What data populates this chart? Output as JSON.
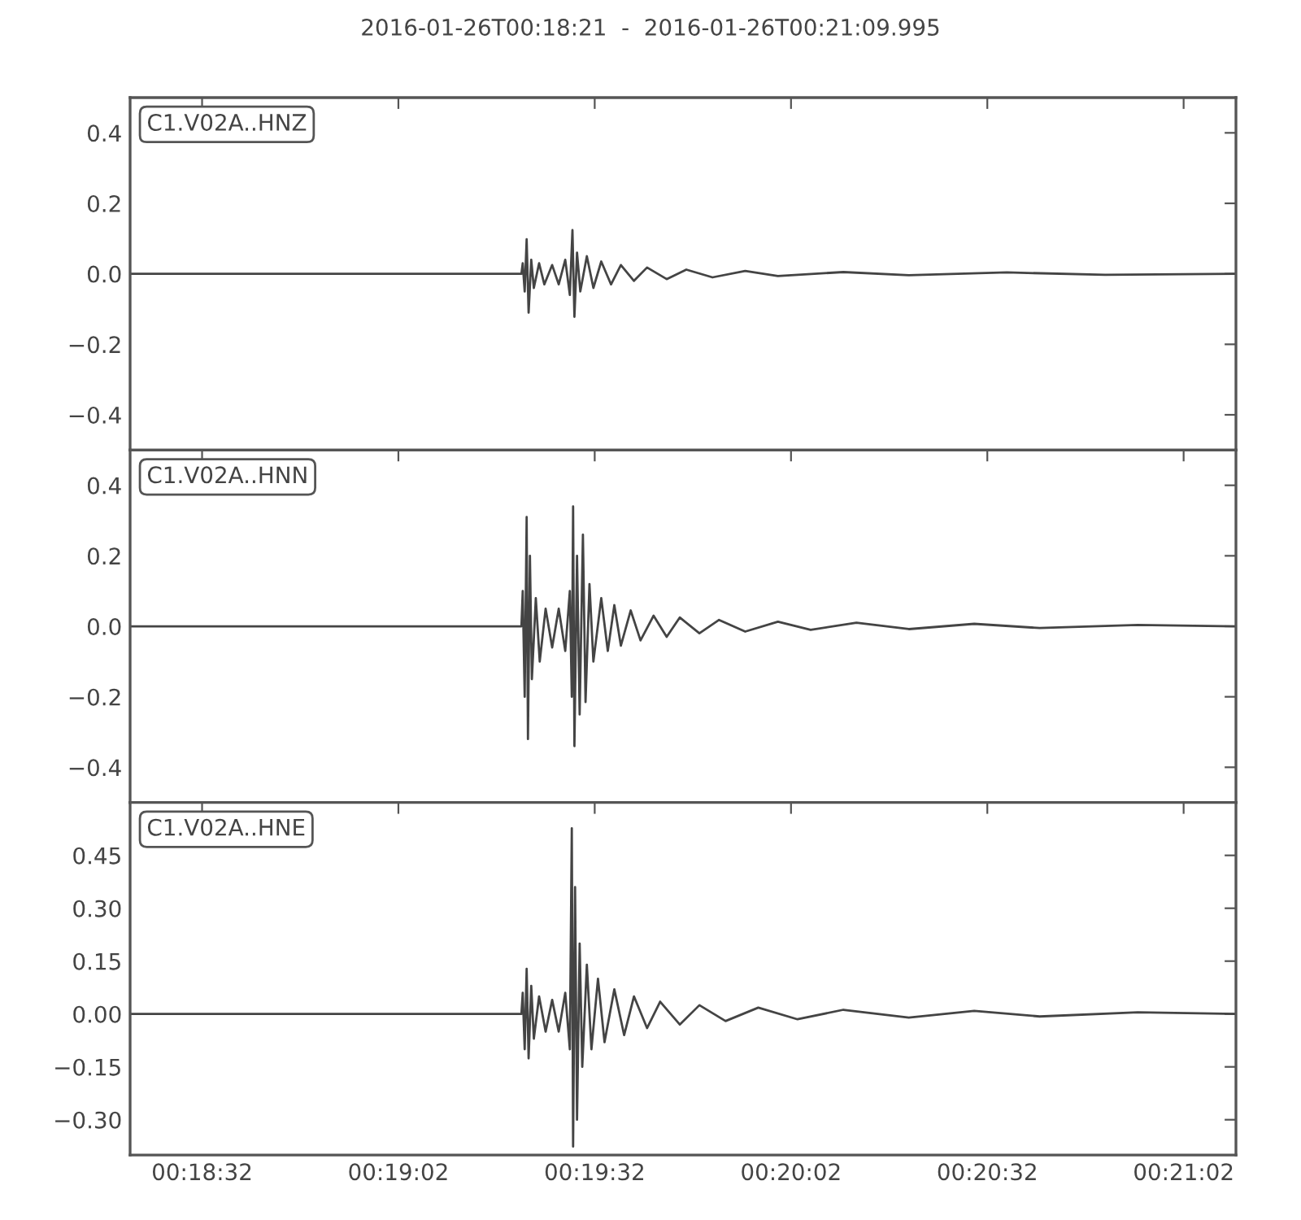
{
  "chart_data": [
    {
      "type": "line",
      "title": "2016-01-26T00:18:21  -  2016-01-26T00:21:09.995",
      "annotations": [
        "C1.V02A..HNZ"
      ],
      "tick_labels": "y",
      "grid": false,
      "legend": false,
      "xlim": [
        1101,
        1269.995
      ],
      "xticks": [
        {
          "value": 1112,
          "label": null
        },
        {
          "value": 1142,
          "label": null
        },
        {
          "value": 1172,
          "label": null
        },
        {
          "value": 1202,
          "label": null
        },
        {
          "value": 1232,
          "label": null
        },
        {
          "value": 1262,
          "label": null
        }
      ],
      "ylim": [
        -0.5,
        0.5
      ],
      "yticks": [
        {
          "value": -0.4,
          "label": "−0.4"
        },
        {
          "value": -0.2,
          "label": "−0.2"
        },
        {
          "value": 0,
          "label": "0.0"
        },
        {
          "value": 0.2,
          "label": "0.2"
        },
        {
          "value": 0.4,
          "label": "0.4"
        }
      ],
      "series": [
        {
          "color": "#444444",
          "x": [
            1101,
            1160.8,
            1161.0,
            1161.3,
            1161.6,
            1161.9,
            1162.3,
            1162.7,
            1163.5,
            1164.3,
            1165.5,
            1166.5,
            1167.5,
            1168.2,
            1168.6,
            1168.9,
            1169.3,
            1169.8,
            1170.8,
            1171.8,
            1173,
            1174.5,
            1176,
            1178,
            1180,
            1183,
            1186,
            1190,
            1195,
            1200,
            1210,
            1220,
            1235,
            1250,
            1269.995
          ],
          "values": [
            0,
            0,
            0.03,
            -0.05,
            0.098,
            -0.11,
            0.04,
            -0.04,
            0.03,
            -0.03,
            0.025,
            -0.03,
            0.04,
            -0.06,
            0.124,
            -0.122,
            0.06,
            -0.05,
            0.05,
            -0.04,
            0.035,
            -0.03,
            0.025,
            -0.02,
            0.018,
            -0.015,
            0.012,
            -0.01,
            0.008,
            -0.006,
            0.005,
            -0.004,
            0.004,
            -0.003,
            0
          ]
        }
      ]
    },
    {
      "type": "line",
      "annotations": [
        "C1.V02A..HNN"
      ],
      "tick_labels": "y",
      "grid": false,
      "legend": false,
      "xlim": [
        1101,
        1269.995
      ],
      "xticks": [
        {
          "value": 1112,
          "label": null
        },
        {
          "value": 1142,
          "label": null
        },
        {
          "value": 1172,
          "label": null
        },
        {
          "value": 1202,
          "label": null
        },
        {
          "value": 1232,
          "label": null
        },
        {
          "value": 1262,
          "label": null
        }
      ],
      "ylim": [
        -0.5,
        0.5
      ],
      "yticks": [
        {
          "value": -0.4,
          "label": "−0.4"
        },
        {
          "value": -0.2,
          "label": "−0.2"
        },
        {
          "value": 0,
          "label": "0.0"
        },
        {
          "value": 0.2,
          "label": "0.2"
        },
        {
          "value": 0.4,
          "label": "0.4"
        }
      ],
      "series": [
        {
          "color": "#444444",
          "x": [
            1101,
            1160.8,
            1161.0,
            1161.3,
            1161.6,
            1161.8,
            1162.1,
            1162.4,
            1163,
            1163.6,
            1164.5,
            1165.5,
            1166.5,
            1167.5,
            1168.2,
            1168.5,
            1168.7,
            1168.9,
            1169.3,
            1169.7,
            1170.2,
            1170.6,
            1171.2,
            1171.8,
            1173,
            1174,
            1175,
            1176,
            1177.5,
            1179,
            1181,
            1183,
            1185,
            1188,
            1191,
            1195,
            1200,
            1205,
            1212,
            1220,
            1230,
            1240,
            1255,
            1269.995
          ],
          "values": [
            0,
            0,
            0.1,
            -0.2,
            0.31,
            -0.32,
            0.2,
            -0.15,
            0.08,
            -0.1,
            0.05,
            -0.06,
            0.05,
            -0.07,
            0.1,
            -0.2,
            0.34,
            -0.34,
            0.2,
            -0.25,
            0.26,
            -0.215,
            0.12,
            -0.1,
            0.08,
            -0.07,
            0.06,
            -0.055,
            0.045,
            -0.04,
            0.03,
            -0.03,
            0.025,
            -0.02,
            0.018,
            -0.015,
            0.013,
            -0.01,
            0.01,
            -0.008,
            0.007,
            -0.005,
            0.004,
            0
          ]
        }
      ]
    },
    {
      "type": "line",
      "annotations": [
        "C1.V02A..HNE"
      ],
      "grid": false,
      "legend": false,
      "xlim": [
        1101,
        1269.995
      ],
      "xticks": [
        {
          "value": 1112,
          "label": "00:18:32"
        },
        {
          "value": 1142,
          "label": "00:19:02"
        },
        {
          "value": 1172,
          "label": "00:19:32"
        },
        {
          "value": 1202,
          "label": "00:20:02"
        },
        {
          "value": 1232,
          "label": "00:20:32"
        },
        {
          "value": 1262,
          "label": "00:21:02"
        }
      ],
      "ylim": [
        -0.4,
        0.6
      ],
      "yticks": [
        {
          "value": -0.3,
          "label": "−0.30"
        },
        {
          "value": -0.15,
          "label": "−0.15"
        },
        {
          "value": 0,
          "label": "0.00"
        },
        {
          "value": 0.15,
          "label": "0.15"
        },
        {
          "value": 0.3,
          "label": "0.30"
        },
        {
          "value": 0.45,
          "label": "0.45"
        }
      ],
      "series": [
        {
          "color": "#444444",
          "x": [
            1101,
            1160.8,
            1161.0,
            1161.3,
            1161.6,
            1161.9,
            1162.3,
            1162.7,
            1163.5,
            1164.5,
            1165.5,
            1166.5,
            1167.5,
            1168.2,
            1168.5,
            1168.7,
            1169.0,
            1169.3,
            1169.7,
            1170.1,
            1170.8,
            1171.5,
            1172.5,
            1173.5,
            1175,
            1176.5,
            1178,
            1180,
            1182,
            1185,
            1188,
            1192,
            1197,
            1203,
            1210,
            1220,
            1230,
            1240,
            1255,
            1269.995
          ],
          "values": [
            0,
            0,
            0.06,
            -0.1,
            0.128,
            -0.126,
            0.08,
            -0.07,
            0.05,
            -0.05,
            0.04,
            -0.05,
            0.06,
            -0.1,
            0.527,
            -0.376,
            0.36,
            -0.3,
            0.2,
            -0.15,
            0.14,
            -0.1,
            0.1,
            -0.08,
            0.07,
            -0.06,
            0.05,
            -0.04,
            0.035,
            -0.03,
            0.025,
            -0.02,
            0.018,
            -0.015,
            0.012,
            -0.01,
            0.009,
            -0.007,
            0.005,
            0
          ]
        }
      ]
    }
  ]
}
